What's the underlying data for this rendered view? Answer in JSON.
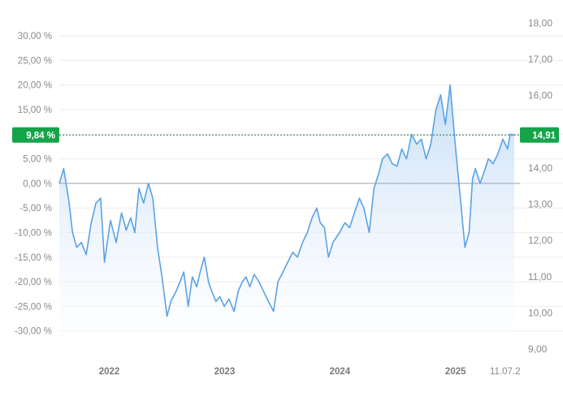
{
  "chart_data": {
    "type": "area",
    "title": "",
    "xlabel": "",
    "ylabel": "",
    "left_axis": {
      "unit": "percent",
      "range": [
        -35,
        32
      ],
      "ticks": [
        30,
        25,
        20,
        15,
        10,
        5,
        0,
        -5,
        -10,
        -15,
        -20,
        -25,
        -30
      ],
      "tick_labels": [
        "30,00 %",
        "25,00 %",
        "20,00 %",
        "15,00 %",
        "10,00 %",
        "5,00 %",
        "0,00 %",
        "-5,00 %",
        "-10,00 %",
        "-15,00 %",
        "-20,00 %",
        "-25,00 %",
        "-30,00 %"
      ]
    },
    "right_axis": {
      "unit": "price",
      "ticks": [
        18,
        17,
        16,
        15,
        14,
        13,
        12,
        11,
        10,
        9
      ],
      "tick_labels": [
        "18,00",
        "17,00",
        "16,00",
        "15,00",
        "14,00",
        "13,00",
        "12,00",
        "11,00",
        "10,00",
        "9,00"
      ]
    },
    "x_axis": {
      "range": [
        "2021-08-01",
        "2025-07-11"
      ],
      "ticks": [
        "2022-01-01",
        "2023-01-01",
        "2024-01-01",
        "2025-01-01",
        "2025-07-11"
      ],
      "tick_labels": [
        "2022",
        "2023",
        "2024",
        "2025",
        "11.07.2"
      ]
    },
    "current": {
      "percent_label": "9,84 %",
      "price_label": "14,91",
      "percent": 9.84,
      "price": 14.91
    },
    "grid": true,
    "colors": {
      "line": "#5aa2e6",
      "fill_top": "#c2dbf7",
      "fill_bottom": "#ffffff",
      "badge": "#16a34a",
      "grid": "#eeeeee",
      "zero_line": "#9aa4ad",
      "current_line": "#1f7a45"
    },
    "series": [
      {
        "x": [
          "2021-08-01",
          "2021-08-15",
          "2021-08-31",
          "2021-09-12",
          "2021-09-25",
          "2021-10-10",
          "2021-10-25",
          "2021-11-10",
          "2021-11-25",
          "2021-12-10",
          "2021-12-22",
          "2022-01-10",
          "2022-01-28",
          "2022-02-14",
          "2022-03-01",
          "2022-03-15",
          "2022-03-28",
          "2022-04-10",
          "2022-04-25",
          "2022-05-10",
          "2022-05-24",
          "2022-06-08",
          "2022-06-22",
          "2022-07-08",
          "2022-07-20",
          "2022-08-05",
          "2022-08-18",
          "2022-08-30",
          "2022-09-13",
          "2022-09-26",
          "2022-10-10",
          "2022-10-21",
          "2022-11-03",
          "2022-11-16",
          "2022-11-27",
          "2022-12-10",
          "2022-12-22",
          "2023-01-05",
          "2023-01-20",
          "2023-02-05",
          "2023-02-18",
          "2023-03-03",
          "2023-03-15",
          "2023-03-27",
          "2023-04-10",
          "2023-04-25",
          "2023-05-10",
          "2023-05-25",
          "2023-06-10",
          "2023-06-24",
          "2023-07-10",
          "2023-07-25",
          "2023-08-10",
          "2023-08-25",
          "2023-09-10",
          "2023-09-25",
          "2023-10-10",
          "2023-10-25",
          "2023-11-05",
          "2023-11-18",
          "2023-12-01",
          "2023-12-15",
          "2024-01-05",
          "2024-01-22",
          "2024-02-06",
          "2024-02-21",
          "2024-03-08",
          "2024-03-22",
          "2024-04-08",
          "2024-04-23",
          "2024-05-08",
          "2024-05-20",
          "2024-06-05",
          "2024-06-20",
          "2024-07-05",
          "2024-07-20",
          "2024-08-04",
          "2024-08-20",
          "2024-09-05",
          "2024-09-20",
          "2024-10-05",
          "2024-10-20",
          "2024-11-05",
          "2024-11-20",
          "2024-12-05",
          "2024-12-20",
          "2025-01-05",
          "2025-01-20",
          "2025-02-05",
          "2025-02-18",
          "2025-03-01",
          "2025-03-10",
          "2025-03-25",
          "2025-04-05",
          "2025-04-10",
          "2025-04-20",
          "2025-05-05",
          "2025-05-20",
          "2025-06-05",
          "2025-06-20",
          "2025-06-28",
          "2025-07-11"
        ],
        "values": [
          0.0,
          3.0,
          -3.5,
          -10.0,
          -13.0,
          -12.0,
          -14.5,
          -8.0,
          -4.0,
          -3.0,
          -16.0,
          -7.5,
          -12.0,
          -6.0,
          -9.5,
          -7.0,
          -10.0,
          -1.0,
          -4.0,
          0.0,
          -3.0,
          -13.0,
          -19.0,
          -27.0,
          -24.0,
          -22.0,
          -20.0,
          -18.0,
          -25.0,
          -19.0,
          -21.0,
          -18.0,
          -15.0,
          -20.0,
          -22.0,
          -24.0,
          -23.0,
          -25.0,
          -23.5,
          -26.0,
          -22.0,
          -20.0,
          -19.0,
          -21.0,
          -18.5,
          -20.0,
          -22.0,
          -24.0,
          -26.0,
          -20.0,
          -18.0,
          -16.0,
          -14.0,
          -15.0,
          -12.0,
          -10.0,
          -7.0,
          -5.0,
          -8.0,
          -9.0,
          -15.0,
          -12.0,
          -10.0,
          -8.0,
          -9.0,
          -6.0,
          -3.0,
          -5.0,
          -10.0,
          -1.0,
          2.0,
          5.0,
          6.0,
          4.0,
          3.5,
          7.0,
          5.0,
          10.0,
          8.0,
          9.0,
          5.0,
          8.0,
          15.0,
          18.0,
          12.0,
          20.0,
          8.0,
          -2.0,
          -13.0,
          -10.0,
          1.0,
          3.0,
          0.0,
          2.0,
          3.0,
          5.0,
          4.0,
          6.0,
          9.0,
          7.0,
          10.0,
          9.84
        ]
      }
    ]
  }
}
